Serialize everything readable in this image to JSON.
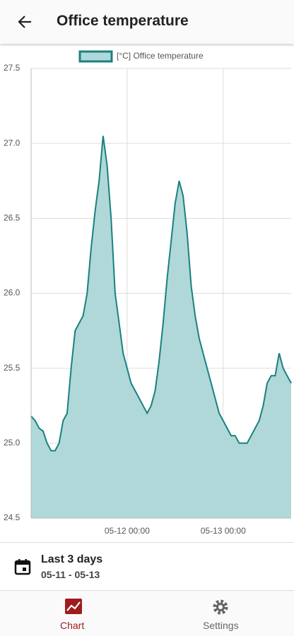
{
  "header": {
    "title": "Office temperature"
  },
  "chart_data": {
    "type": "area",
    "x": [
      "05-11 00:00",
      "05-11 01:00",
      "05-11 02:00",
      "05-11 03:00",
      "05-11 04:00",
      "05-11 05:00",
      "05-11 06:00",
      "05-11 07:00",
      "05-11 08:00",
      "05-11 09:00",
      "05-11 10:00",
      "05-11 11:00",
      "05-11 12:00",
      "05-11 13:00",
      "05-11 14:00",
      "05-11 15:00",
      "05-11 16:00",
      "05-11 17:00",
      "05-11 18:00",
      "05-11 19:00",
      "05-11 20:00",
      "05-11 21:00",
      "05-11 22:00",
      "05-11 23:00",
      "05-12 00:00",
      "05-12 01:00",
      "05-12 02:00",
      "05-12 03:00",
      "05-12 04:00",
      "05-12 05:00",
      "05-12 06:00",
      "05-12 07:00",
      "05-12 08:00",
      "05-12 09:00",
      "05-12 10:00",
      "05-12 11:00",
      "05-12 12:00",
      "05-12 13:00",
      "05-12 14:00",
      "05-12 15:00",
      "05-12 16:00",
      "05-12 17:00",
      "05-12 18:00",
      "05-12 19:00",
      "05-12 20:00",
      "05-12 21:00",
      "05-12 22:00",
      "05-12 23:00",
      "05-13 00:00",
      "05-13 01:00",
      "05-13 02:00",
      "05-13 03:00",
      "05-13 04:00",
      "05-13 05:00",
      "05-13 06:00",
      "05-13 07:00",
      "05-13 08:00",
      "05-13 09:00",
      "05-13 10:00",
      "05-13 11:00",
      "05-13 12:00",
      "05-13 13:00",
      "05-13 14:00",
      "05-13 15:00",
      "05-13 16:00",
      "05-13 17:00"
    ],
    "series": [
      {
        "name": "[°C] Office temperature",
        "color": "#1a8080",
        "fill": "#b0d8d8",
        "values": [
          25.18,
          25.15,
          25.1,
          25.08,
          25.0,
          24.95,
          24.95,
          25.0,
          25.15,
          25.2,
          25.5,
          25.75,
          25.8,
          25.85,
          26.0,
          26.3,
          26.55,
          26.75,
          27.05,
          26.85,
          26.5,
          26.0,
          25.8,
          25.6,
          25.5,
          25.4,
          25.35,
          25.3,
          25.25,
          25.2,
          25.25,
          25.35,
          25.55,
          25.8,
          26.1,
          26.35,
          26.6,
          26.75,
          26.65,
          26.4,
          26.05,
          25.85,
          25.7,
          25.6,
          25.5,
          25.4,
          25.3,
          25.2,
          25.15,
          25.1,
          25.05,
          25.05,
          25.0,
          25.0,
          25.0,
          25.05,
          25.1,
          25.15,
          25.25,
          25.4,
          25.45,
          25.45,
          25.6,
          25.5,
          25.45,
          25.4
        ]
      }
    ],
    "xlim": [
      "05-11 00:00",
      "05-13 17:00"
    ],
    "xticks": [
      "05-12 00:00",
      "05-13 00:00"
    ],
    "ylim": [
      24.5,
      27.5
    ],
    "yticks": [
      24.5,
      {
        "value": 25,
        "label": "25.0"
      },
      25.5,
      {
        "value": 26,
        "label": "26.0"
      },
      26.5,
      {
        "value": 27,
        "label": "27.0"
      },
      27.5
    ],
    "grid": true
  },
  "range": {
    "title": "Last 3 days",
    "subtitle": "05-11 - 05-13"
  },
  "nav": [
    "Chart",
    "Settings"
  ]
}
